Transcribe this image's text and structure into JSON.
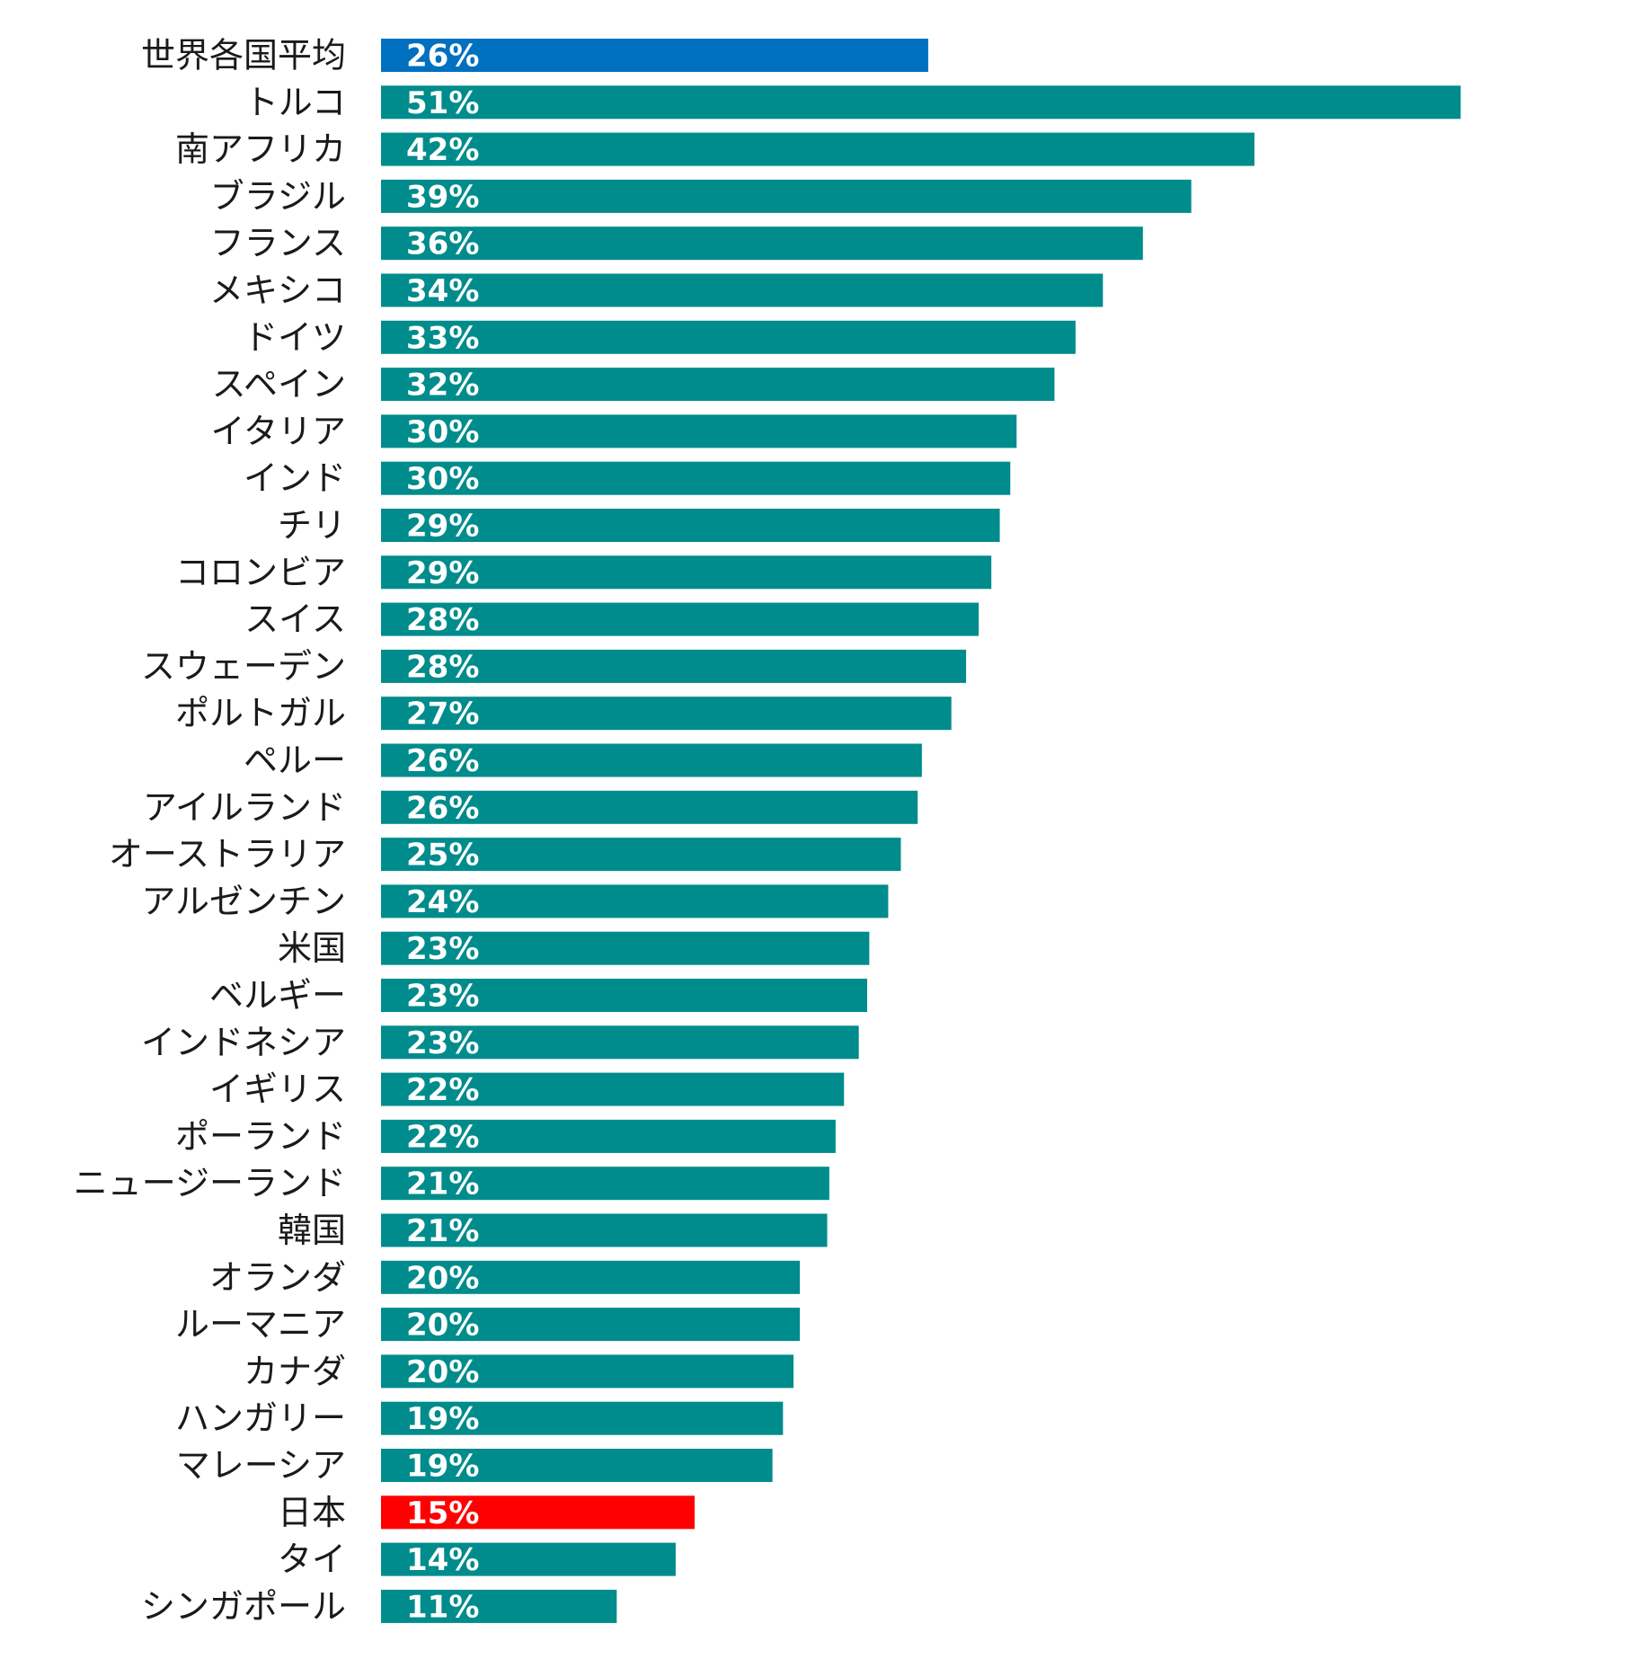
{
  "chart_data": {
    "type": "bar",
    "orientation": "horizontal",
    "title": "",
    "xlabel": "",
    "ylabel": "",
    "xlim": [
      0,
      51
    ],
    "grid": false,
    "legend": "none",
    "colors": {
      "default": "#008c8c",
      "average": "#0070c0",
      "japan": "#ff0000",
      "label": "#ffffff"
    },
    "categories": [
      "世界各国平均",
      "トルコ",
      "南アフリカ",
      "ブラジル",
      "フランス",
      "メキシコ",
      "ドイツ",
      "スペイン",
      "イタリア",
      "インド",
      "チリ",
      "コロンビア",
      "スイス",
      "スウェーデン",
      "ポルトガル",
      "ペルー",
      "アイルランド",
      "オーストラリア",
      "アルゼンチン",
      "米国",
      "ベルギー",
      "インドネシア",
      "イギリス",
      "ポーランド",
      "ニュージーランド",
      "韓国",
      "オランダ",
      "ルーマニア",
      "カナダ",
      "ハンガリー",
      "マレーシア",
      "日本",
      "タイ",
      "シンガポール"
    ],
    "values": [
      26.0,
      51.3,
      41.5,
      38.5,
      36.2,
      34.3,
      33.0,
      32.0,
      30.2,
      29.9,
      29.4,
      29.0,
      28.4,
      27.8,
      27.1,
      25.7,
      25.5,
      24.7,
      24.1,
      23.2,
      23.1,
      22.7,
      22.0,
      21.6,
      21.3,
      21.2,
      19.9,
      19.9,
      19.6,
      19.1,
      18.6,
      14.9,
      14.0,
      11.2
    ],
    "value_labels": [
      "26%",
      "51%",
      "42%",
      "39%",
      "36%",
      "34%",
      "33%",
      "32%",
      "30%",
      "30%",
      "29%",
      "29%",
      "28%",
      "28%",
      "27%",
      "26%",
      "26%",
      "25%",
      "24%",
      "23%",
      "23%",
      "23%",
      "22%",
      "22%",
      "21%",
      "21%",
      "20%",
      "20%",
      "20%",
      "19%",
      "19%",
      "15%",
      "14%",
      "11%"
    ],
    "highlight": {
      "世界各国平均": "average",
      "日本": "japan"
    }
  }
}
